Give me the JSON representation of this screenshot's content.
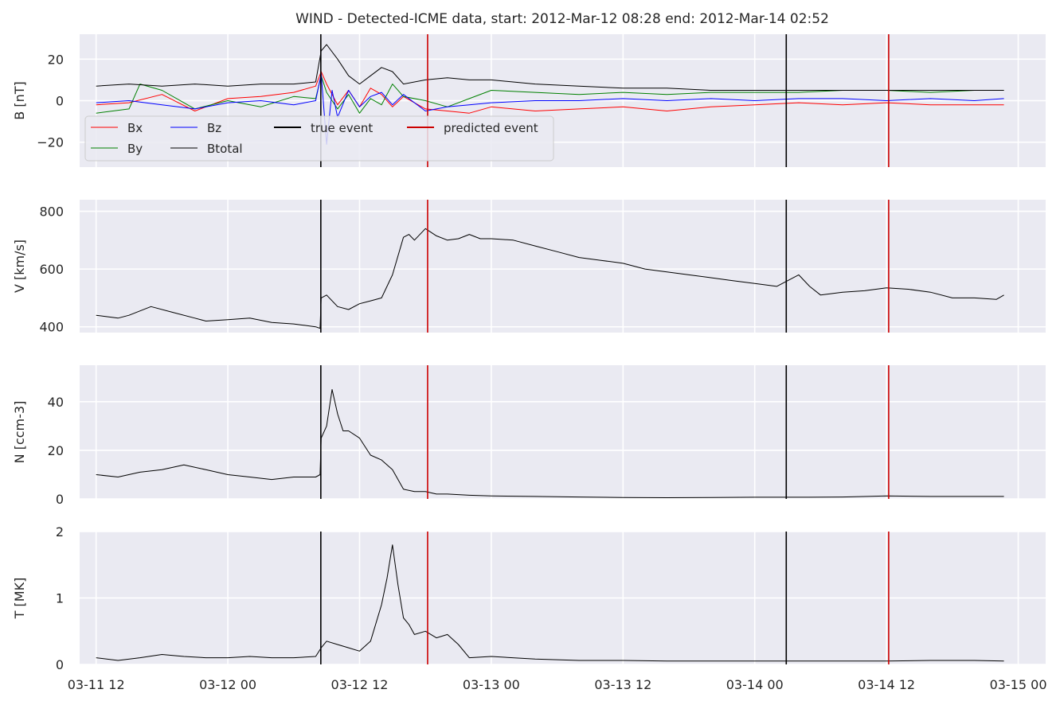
{
  "title": "WIND - Detected-ICME data, start: 2012-Mar-12 08:28  end: 2012-Mar-14 02:52",
  "chart_data": {
    "type": "line",
    "title": "WIND - Detected-ICME data, start: 2012-Mar-12 08:28  end: 2012-Mar-14 02:52",
    "x_unit": "hours",
    "x_range": [
      -1.5,
      86.5
    ],
    "x_ticks": [
      {
        "t": 0,
        "label": "03-11 12"
      },
      {
        "t": 12,
        "label": "03-12 00"
      },
      {
        "t": 24,
        "label": "03-12 12"
      },
      {
        "t": 36,
        "label": "03-13 00"
      },
      {
        "t": 48,
        "label": "03-13 12"
      },
      {
        "t": 60,
        "label": "03-14 00"
      },
      {
        "t": 72,
        "label": "03-14 12"
      },
      {
        "t": 84,
        "label": "03-15 00"
      }
    ],
    "events": {
      "true_event": {
        "label": "true event",
        "color": "#000000",
        "start_t": 20.47,
        "end_t": 62.87
      },
      "predicted_event": {
        "label": "predicted event",
        "color": "#cc0000",
        "start_t": 30.2,
        "end_t": 72.2
      }
    },
    "grid": true,
    "legend_location": "top-left of the first panel",
    "panels": [
      {
        "id": "B",
        "ylabel": "B [nT]",
        "ylim": [
          -32,
          32
        ],
        "yticks": [
          -20,
          0,
          20
        ],
        "ytick_labels": [
          "−20",
          "0",
          "20"
        ],
        "series": [
          {
            "name": "Bx",
            "color": "#ff0000",
            "x": [
              0,
              3,
              6,
              9,
              12,
              15,
              18,
              20,
              20.5,
              21,
              22,
              23,
              24,
              25,
              26,
              27,
              28,
              30,
              32,
              34,
              36,
              40,
              44,
              48,
              52,
              56,
              60,
              64,
              68,
              72,
              76,
              80,
              82.7
            ],
            "y": [
              -2,
              -1,
              3,
              -5,
              1,
              2,
              4,
              7,
              14,
              8,
              -2,
              5,
              -3,
              6,
              3,
              -3,
              2,
              -4,
              -5,
              -6,
              -3,
              -5,
              -4,
              -3,
              -5,
              -3,
              -2,
              -1,
              -2,
              -1,
              -2,
              -2,
              -2
            ]
          },
          {
            "name": "By",
            "color": "#008000",
            "x": [
              0,
              3,
              4,
              6,
              9,
              12,
              15,
              18,
              20,
              20.5,
              21,
              22,
              23,
              24,
              25,
              26,
              27,
              28,
              30,
              32,
              34,
              36,
              40,
              44,
              48,
              52,
              56,
              60,
              64,
              68,
              72,
              76,
              80,
              82.7
            ],
            "y": [
              -6,
              -4,
              8,
              5,
              -4,
              0,
              -3,
              2,
              1,
              12,
              4,
              -4,
              3,
              -6,
              1,
              -2,
              8,
              2,
              0,
              -3,
              1,
              5,
              4,
              3,
              4,
              3,
              4,
              4,
              4,
              5,
              5,
              4,
              5,
              5
            ]
          },
          {
            "name": "Bz",
            "color": "#0000ff",
            "x": [
              0,
              3,
              6,
              9,
              12,
              15,
              18,
              20,
              20.5,
              21,
              21.5,
              22,
              23,
              24,
              25,
              26,
              27,
              28,
              30,
              32,
              34,
              36,
              40,
              44,
              48,
              52,
              56,
              60,
              64,
              68,
              72,
              76,
              80,
              82.7
            ],
            "y": [
              -1,
              0,
              -2,
              -4,
              -1,
              0,
              -2,
              0,
              13,
              -21,
              5,
              -8,
              5,
              -3,
              2,
              4,
              -2,
              3,
              -5,
              -3,
              -2,
              -1,
              0,
              0,
              1,
              0,
              1,
              0,
              1,
              1,
              0,
              1,
              0,
              1
            ]
          },
          {
            "name": "Btotal",
            "color": "#000000",
            "x": [
              0,
              3,
              6,
              9,
              12,
              15,
              18,
              20,
              20.5,
              21,
              22,
              23,
              24,
              25,
              26,
              27,
              28,
              30,
              32,
              34,
              36,
              40,
              44,
              48,
              52,
              56,
              60,
              64,
              68,
              72,
              76,
              80,
              82.7
            ],
            "y": [
              7,
              8,
              7,
              8,
              7,
              8,
              8,
              9,
              24,
              27,
              20,
              12,
              8,
              12,
              16,
              14,
              8,
              10,
              11,
              10,
              10,
              8,
              7,
              6,
              6,
              5,
              5,
              5,
              5,
              5,
              5,
              5,
              5
            ]
          }
        ]
      },
      {
        "id": "V",
        "ylabel": "V [km/s]",
        "ylim": [
          380,
          840
        ],
        "yticks": [
          400,
          600,
          800
        ],
        "ytick_labels": [
          "400",
          "600",
          "800"
        ],
        "series": [
          {
            "name": "V",
            "color": "#000000",
            "x": [
              0,
              1,
              2,
              3,
              5,
              7,
              9,
              10,
              12,
              14,
              16,
              18,
              19,
              20,
              20.4,
              20.5,
              21,
              22,
              23,
              24,
              25,
              26,
              27,
              28,
              28.5,
              29,
              30,
              31,
              32,
              33,
              34,
              35,
              36,
              38,
              40,
              42,
              44,
              46,
              48,
              50,
              52,
              54,
              56,
              58,
              60,
              62,
              63,
              64,
              65,
              66,
              68,
              70,
              72,
              74,
              76,
              78,
              80,
              82,
              82.7
            ],
            "y": [
              440,
              435,
              430,
              440,
              470,
              450,
              430,
              420,
              425,
              430,
              415,
              410,
              405,
              400,
              395,
              500,
              510,
              470,
              460,
              480,
              490,
              500,
              580,
              710,
              720,
              700,
              740,
              715,
              700,
              705,
              720,
              705,
              705,
              700,
              680,
              660,
              640,
              630,
              620,
              600,
              590,
              580,
              570,
              560,
              550,
              540,
              560,
              580,
              540,
              510,
              520,
              525,
              535,
              530,
              520,
              500,
              500,
              495,
              510
            ]
          }
        ]
      },
      {
        "id": "N",
        "ylabel": "N [ccm-3]",
        "ylim": [
          0,
          55
        ],
        "yticks": [
          0,
          20,
          40
        ],
        "ytick_labels": [
          "0",
          "20",
          "40"
        ],
        "series": [
          {
            "name": "N",
            "color": "#000000",
            "x": [
              0,
              2,
              4,
              6,
              8,
              10,
              12,
              14,
              16,
              18,
              20,
              20.4,
              20.5,
              21,
              21.5,
              22,
              22.5,
              23,
              24,
              25,
              26,
              27,
              28,
              29,
              30,
              31,
              32,
              34,
              36,
              40,
              44,
              48,
              52,
              56,
              60,
              64,
              68,
              72,
              76,
              80,
              82.7
            ],
            "y": [
              10,
              9,
              11,
              12,
              14,
              12,
              10,
              9,
              8,
              9,
              9,
              10,
              25,
              30,
              45,
              35,
              28,
              28,
              25,
              18,
              16,
              12,
              4,
              3,
              3,
              2,
              2,
              1.5,
              1.2,
              1,
              0.8,
              0.6,
              0.5,
              0.6,
              0.7,
              0.7,
              0.8,
              1.2,
              1,
              1,
              1
            ]
          }
        ]
      },
      {
        "id": "T",
        "ylabel": "T [MK]",
        "ylim": [
          0,
          2
        ],
        "yticks": [
          0,
          1,
          2
        ],
        "ytick_labels": [
          "0",
          "1",
          "2"
        ],
        "series": [
          {
            "name": "T",
            "color": "#000000",
            "x": [
              0,
              2,
              4,
              6,
              8,
              10,
              12,
              14,
              16,
              18,
              20,
              20.5,
              21,
              22,
              23,
              24,
              25,
              26,
              26.5,
              27,
              27.5,
              28,
              28.5,
              29,
              30,
              31,
              32,
              33,
              34,
              36,
              40,
              44,
              48,
              52,
              56,
              60,
              64,
              68,
              72,
              76,
              80,
              82.7
            ],
            "y": [
              0.1,
              0.06,
              0.1,
              0.15,
              0.12,
              0.1,
              0.1,
              0.12,
              0.1,
              0.1,
              0.12,
              0.25,
              0.35,
              0.3,
              0.25,
              0.2,
              0.35,
              0.9,
              1.3,
              1.8,
              1.2,
              0.7,
              0.6,
              0.45,
              0.5,
              0.4,
              0.45,
              0.3,
              0.1,
              0.12,
              0.08,
              0.06,
              0.06,
              0.05,
              0.05,
              0.05,
              0.05,
              0.05,
              0.05,
              0.06,
              0.06,
              0.05
            ]
          }
        ]
      }
    ]
  }
}
